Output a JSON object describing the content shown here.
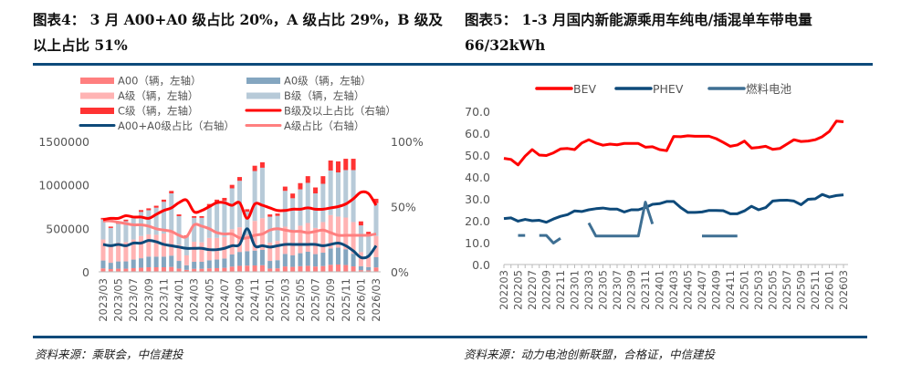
{
  "left_title": "图表4：  3 月 A00+A0 级占比 20%，A 级占比 29%，B 级及以上占比 51%",
  "right_title_l1": "图表5：  1-3  月国内新能源乘用车纯电/插混单车带电量",
  "right_title_l2": "66/32kWh",
  "left_source": "资料来源：乘联会，中信建投",
  "right_source": "资料来源：动力电池创新联盟，合格证，中信建投",
  "chart_data": [
    {
      "type": "bar",
      "stacked": true,
      "note": "totals in vehicles; shares in %; class units = total x share",
      "categories": [
        "2023/03",
        "2023/04",
        "2023/05",
        "2023/06",
        "2023/07",
        "2023/08",
        "2023/09",
        "2023/10",
        "2023/11",
        "2023/12",
        "2024/01",
        "2024/02",
        "2024/03",
        "2024/04",
        "2024/05",
        "2024/06",
        "2024/07",
        "2024/08",
        "2024/09",
        "2024/10",
        "2024/11",
        "2024/12",
        "2025/01",
        "2025/02",
        "2025/03",
        "2025/04",
        "2025/05",
        "2025/06",
        "2025/07",
        "2025/08",
        "2025/09",
        "2025/10",
        "2025/11",
        "2025/12",
        "2026/01",
        "2026/02",
        "2026/03"
      ],
      "totals": [
        620000,
        520000,
        570000,
        600000,
        640000,
        710000,
        730000,
        760000,
        830000,
        930000,
        660000,
        420000,
        640000,
        640000,
        780000,
        830000,
        850000,
        1000000,
        1090000,
        720000,
        1220000,
        1260000,
        660000,
        670000,
        980000,
        900000,
        1020000,
        1100000,
        970000,
        1100000,
        1280000,
        1270000,
        1300000,
        1300000,
        580000,
        460000,
        840000
      ],
      "a00_a0_share": [
        21,
        20,
        21,
        20,
        22,
        22,
        24,
        23,
        21,
        20,
        19,
        18,
        18,
        18,
        17,
        17,
        18,
        20,
        21,
        33,
        20,
        20,
        19,
        20,
        21,
        21,
        21,
        21,
        21,
        20,
        21,
        22,
        20,
        16,
        11,
        12,
        20
      ],
      "a_share": [
        39,
        39,
        38,
        37,
        36,
        36,
        35,
        33,
        32,
        31,
        28,
        27,
        36,
        35,
        33,
        30,
        29,
        29,
        26,
        26,
        28,
        29,
        32,
        33,
        32,
        31,
        31,
        30,
        31,
        32,
        30,
        28,
        28,
        28,
        28,
        28,
        29
      ],
      "b_plus_share": [
        40,
        41,
        41,
        43,
        42,
        42,
        41,
        44,
        47,
        49,
        53,
        55,
        46,
        47,
        50,
        53,
        53,
        51,
        53,
        41,
        52,
        51,
        49,
        47,
        47,
        48,
        48,
        49,
        48,
        48,
        49,
        50,
        52,
        56,
        61,
        60,
        51
      ],
      "a00_fraction_of_a00_a0": 0.3,
      "c_share": [
        3,
        3,
        3,
        3,
        3,
        3,
        3,
        3,
        3,
        3,
        3,
        3,
        3,
        3,
        4,
        4,
        4,
        4,
        4,
        4,
        5,
        5,
        4,
        4,
        5,
        6,
        7,
        7,
        7,
        8,
        9,
        10,
        10,
        10,
        8,
        7,
        6
      ],
      "left_axis": {
        "min": 0,
        "max": 1500000,
        "ticks": [
          "0",
          "500000",
          "1000000",
          "1500000"
        ]
      },
      "right_axis": {
        "min": 0,
        "max": 100,
        "ticks": [
          "0%",
          "50%",
          "100%"
        ]
      },
      "legend": [
        {
          "label": "A00（辆，左轴）",
          "color": "#ff7f7f",
          "kind": "bar"
        },
        {
          "label": "A0级（辆，左轴）",
          "color": "#84a6c0",
          "kind": "bar"
        },
        {
          "label": "A级（辆，左轴）",
          "color": "#ffb3b3",
          "kind": "bar"
        },
        {
          "label": "B级（辆，左轴）",
          "color": "#b7cad8",
          "kind": "bar"
        },
        {
          "label": "C级（辆，左轴）",
          "color": "#ff3333",
          "kind": "bar"
        },
        {
          "label": "B级及以上占比（右轴）",
          "color": "#ff0000",
          "kind": "line"
        },
        {
          "label": "A00+A0级占比（右轴）",
          "color": "#0e4a7a",
          "kind": "line"
        },
        {
          "label": "A级占比（右轴）",
          "color": "#ff7f7f",
          "kind": "line"
        }
      ]
    },
    {
      "type": "line",
      "categories": [
        "202203",
        "202204",
        "202205",
        "202206",
        "202207",
        "202208",
        "202209",
        "202210",
        "202211",
        "202212",
        "202301",
        "202302",
        "202303",
        "202304",
        "202305",
        "202306",
        "202307",
        "202308",
        "202309",
        "202310",
        "202311",
        "202312",
        "202401",
        "202402",
        "202403",
        "202404",
        "202405",
        "202406",
        "202407",
        "202408",
        "202409",
        "202410",
        "202411",
        "202412",
        "202501",
        "202502",
        "202503",
        "202504",
        "202505",
        "202506",
        "202507",
        "202508",
        "202509",
        "202510",
        "202511",
        "202512",
        "202601",
        "202602",
        "202603"
      ],
      "series": [
        {
          "name": "BEV",
          "color": "#ff0000",
          "values": [
            48.5,
            48,
            45.5,
            49.5,
            52.5,
            50,
            49.8,
            51,
            52.8,
            53,
            52.5,
            55.5,
            57,
            55.5,
            54.5,
            55,
            54.7,
            55.3,
            55.3,
            55.3,
            53.6,
            53.8,
            52.5,
            52,
            58.5,
            58.4,
            58.8,
            58.6,
            58.6,
            58.6,
            57.5,
            55.8,
            54,
            54.6,
            56.4,
            53.2,
            53.5,
            54,
            52.6,
            53,
            55,
            57,
            56.2,
            56.4,
            57,
            58.4,
            60.8,
            65.5,
            65.2
          ]
        },
        {
          "name": "PHEV",
          "color": "#0e4a7a",
          "values": [
            21,
            21.3,
            19.8,
            20.6,
            20,
            20.2,
            19.3,
            20.8,
            22,
            22.8,
            24.5,
            24.2,
            25,
            25.5,
            25.8,
            25.3,
            25.3,
            24,
            25,
            25,
            26,
            27.5,
            27.8,
            28.8,
            28.8,
            26,
            23.8,
            23.8,
            24,
            24.7,
            24.7,
            24.6,
            23.2,
            23.2,
            24.5,
            26.6,
            25,
            26,
            29,
            29.3,
            29.4,
            29,
            27.3,
            29.8,
            30,
            32,
            30.8,
            31.5,
            31.8
          ]
        },
        {
          "name": "燃料电池",
          "color": "#3e6f93",
          "values": [
            null,
            null,
            13.3,
            13.3,
            null,
            13.3,
            13.3,
            9.8,
            12,
            null,
            null,
            null,
            19,
            13,
            13,
            13,
            13,
            13,
            13,
            13,
            28.5,
            18.5,
            null,
            null,
            null,
            null,
            null,
            null,
            13,
            13,
            13,
            13,
            13,
            13,
            null,
            null,
            null,
            null,
            null,
            null,
            null,
            null,
            null,
            null,
            null,
            null,
            null,
            null,
            null
          ]
        }
      ],
      "y_axis": {
        "min": 0,
        "max": 70,
        "ticks": [
          "0.0",
          "10.0",
          "20.0",
          "30.0",
          "40.0",
          "50.0",
          "60.0",
          "70.0"
        ]
      }
    }
  ]
}
